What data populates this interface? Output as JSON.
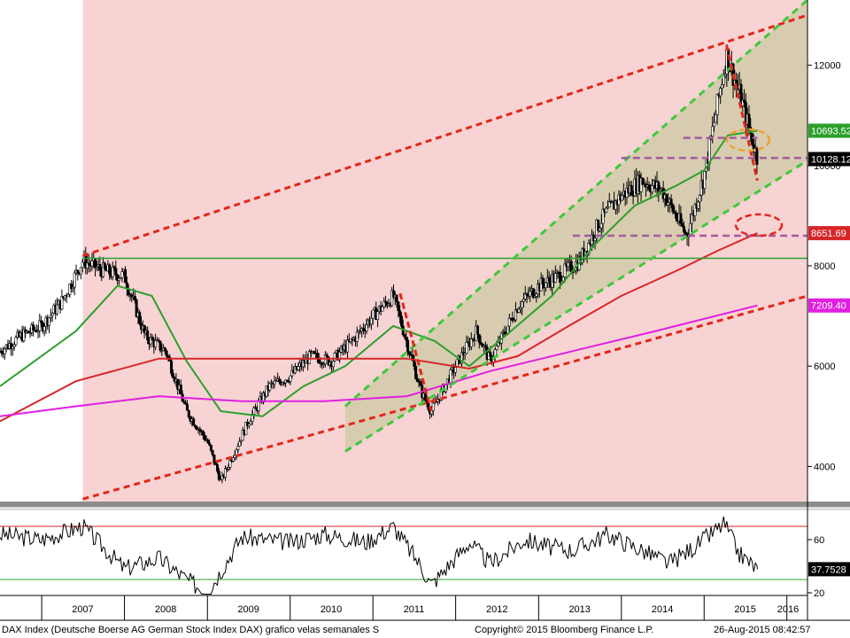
{
  "chart_data": [
    {
      "type": "candlestick",
      "panel": "price",
      "ylim": [
        3300,
        13300
      ],
      "y_scale": "linear",
      "yticks": [
        4000,
        6000,
        8000,
        10000,
        12000
      ],
      "ytick_labels": [
        "4000",
        "6000",
        "8000",
        "10000",
        "12000"
      ],
      "x_range": [
        "2006-07-01",
        "2016-04-01"
      ],
      "series": [
        {
          "key": "close",
          "color": "#000000",
          "x": [
            "2006-07-01",
            "2006-10-01",
            "2007-01-01",
            "2007-04-01",
            "2007-07-01",
            "2007-10-01",
            "2008-01-01",
            "2008-04-01",
            "2008-07-01",
            "2008-10-01",
            "2009-01-01",
            "2009-03-01",
            "2009-07-01",
            "2009-10-01",
            "2010-01-01",
            "2010-04-01",
            "2010-07-01",
            "2010-10-01",
            "2011-01-01",
            "2011-04-01",
            "2011-08-01",
            "2011-09-15",
            "2012-01-01",
            "2012-04-01",
            "2012-06-01",
            "2012-10-01",
            "2013-01-01",
            "2013-04-01",
            "2013-07-01",
            "2013-10-01",
            "2014-01-01",
            "2014-04-01",
            "2014-07-01",
            "2014-10-15",
            "2015-01-01",
            "2015-04-10",
            "2015-06-15",
            "2015-08-24"
          ],
          "y": [
            6300,
            6600,
            6800,
            7300,
            8100,
            7900,
            7800,
            6600,
            6300,
            5100,
            4500,
            3700,
            4900,
            5600,
            5800,
            6200,
            6100,
            6500,
            7000,
            7400,
            5500,
            5100,
            6000,
            6700,
            6100,
            7200,
            7600,
            7800,
            8100,
            8900,
            9400,
            9700,
            9500,
            8600,
            9800,
            12200,
            11300,
            10128
          ]
        }
      ],
      "lines": [
        {
          "name": "MA-green",
          "color": "#2ca02c",
          "x": [
            "2006-07-01",
            "2007-06-01",
            "2007-12-01",
            "2008-05-01",
            "2008-10-01",
            "2009-03-01",
            "2009-09-01",
            "2010-03-01",
            "2010-09-01",
            "2011-04-01",
            "2011-10-01",
            "2012-03-01",
            "2012-09-01",
            "2013-03-01",
            "2013-09-01",
            "2014-03-01",
            "2014-09-01",
            "2015-01-01",
            "2015-04-15",
            "2015-08-24"
          ],
          "y": [
            5600,
            6700,
            7600,
            7400,
            6100,
            5100,
            5000,
            5600,
            6000,
            6800,
            6500,
            6000,
            6700,
            7400,
            8400,
            9200,
            9600,
            9900,
            10600,
            10693.52
          ]
        },
        {
          "name": "MA-red",
          "color": "#d62728",
          "x": [
            "2006-07-01",
            "2007-06-01",
            "2008-06-01",
            "2009-06-01",
            "2010-06-01",
            "2011-06-01",
            "2012-03-01",
            "2012-10-01",
            "2013-06-01",
            "2014-01-01",
            "2014-09-01",
            "2015-03-01",
            "2015-08-24"
          ],
          "y": [
            4900,
            5700,
            6150,
            6150,
            6150,
            6150,
            5950,
            6200,
            6850,
            7400,
            7900,
            8300,
            8651.69
          ]
        },
        {
          "name": "MA-magenta",
          "color": "#e020e0",
          "x": [
            "2006-07-01",
            "2007-06-01",
            "2008-06-01",
            "2009-06-01",
            "2010-06-01",
            "2011-06-01",
            "2012-06-01",
            "2013-06-01",
            "2014-06-01",
            "2015-08-24"
          ],
          "y": [
            5000,
            5200,
            5400,
            5300,
            5300,
            5400,
            5900,
            6300,
            6700,
            7209.4
          ]
        }
      ],
      "last_values": [
        {
          "value": 10693.52,
          "label": "10693.52",
          "color": "#2ca02c"
        },
        {
          "value": 10128.12,
          "label": "10128.12",
          "color": "#000000"
        },
        {
          "value": 8651.69,
          "label": "8651.69",
          "color": "#d62728"
        },
        {
          "value": 7209.4,
          "label": "7209.40",
          "color": "#e020e0"
        }
      ],
      "annotations": {
        "horizontal_support": {
          "value": 8150,
          "color": "#2ca02c"
        },
        "red_channel": [
          {
            "from": [
              "2007-07-01",
              8200
            ],
            "to": [
              "2016-04-01",
              13000
            ]
          },
          {
            "from": [
              "2007-07-01",
              3350
            ],
            "to": [
              "2016-04-01",
              7400
            ]
          }
        ],
        "green_channel": [
          {
            "from": [
              "2010-09-01",
              5200
            ],
            "to": [
              "2016-04-01",
              13300
            ]
          },
          {
            "from": [
              "2010-09-01",
              4300
            ],
            "to": [
              "2016-04-01",
              10100
            ]
          }
        ],
        "dashed_levels": [
          {
            "value": 10550,
            "from": "2014-10-01",
            "to": "2015-08-24"
          },
          {
            "value": 10150,
            "from": "2014-01-01",
            "to": "2016-04-01"
          },
          {
            "value": 8600,
            "from": "2013-06-01",
            "to": "2016-04-01"
          }
        ],
        "drops": [
          {
            "from": [
              "2011-05-01",
              7450
            ],
            "to": [
              "2011-09-15",
              5100
            ]
          },
          {
            "from": [
              "2015-04-10",
              12400
            ],
            "to": [
              "2015-08-24",
              9700
            ]
          }
        ],
        "shading": [
          {
            "from": "2007-07-01",
            "to": "2016-04-01",
            "color": "#f8d3d3"
          },
          {
            "from": "2010-09-01",
            "to": "2016-04-01",
            "color": "#d8ccb0"
          }
        ]
      }
    },
    {
      "type": "line",
      "panel": "indicator",
      "ylim": [
        18,
        82
      ],
      "yticks": [
        20,
        60
      ],
      "ytick_labels": [
        "20",
        "60"
      ],
      "upper_line": {
        "value": 70,
        "color": "#d62728"
      },
      "lower_line": {
        "value": 30,
        "color": "#2ca02c"
      },
      "last_value": {
        "value": 37.7528,
        "label": "37.7528"
      },
      "series": [
        {
          "color": "#000000",
          "x": [
            "2006-07-01",
            "2007-01-01",
            "2007-07-01",
            "2008-01-01",
            "2008-06-01",
            "2008-10-01",
            "2009-01-01",
            "2009-06-01",
            "2010-01-01",
            "2010-06-01",
            "2010-12-01",
            "2011-04-01",
            "2011-08-01",
            "2011-09-15",
            "2012-03-01",
            "2012-06-01",
            "2012-11-01",
            "2013-03-01",
            "2013-06-01",
            "2013-11-01",
            "2014-04-01",
            "2014-08-01",
            "2014-12-01",
            "2015-04-01",
            "2015-06-01",
            "2015-08-24"
          ],
          "y": [
            64,
            60,
            70,
            38,
            46,
            30,
            20,
            62,
            58,
            64,
            58,
            70,
            40,
            26,
            58,
            42,
            60,
            54,
            52,
            64,
            52,
            42,
            56,
            72,
            50,
            37.75
          ]
        }
      ]
    }
  ],
  "x_axis": {
    "labels": [
      "2007",
      "2008",
      "2009",
      "2010",
      "2011",
      "2012",
      "2013",
      "2014",
      "2015",
      "2016"
    ],
    "label_dates": [
      "2007-07-01",
      "2008-07-01",
      "2009-07-01",
      "2010-07-01",
      "2011-07-01",
      "2012-07-01",
      "2013-07-01",
      "2014-07-01",
      "2015-07-01",
      "2016-07-01"
    ]
  },
  "footer": {
    "left": "DAX Index (Deutsche Boerse AG German Stock Index DAX) grafico velas semanales  S",
    "center": "Copyright© 2015 Bloomberg Finance L.P.",
    "right": "26-Aug-2015 08:42:57"
  }
}
